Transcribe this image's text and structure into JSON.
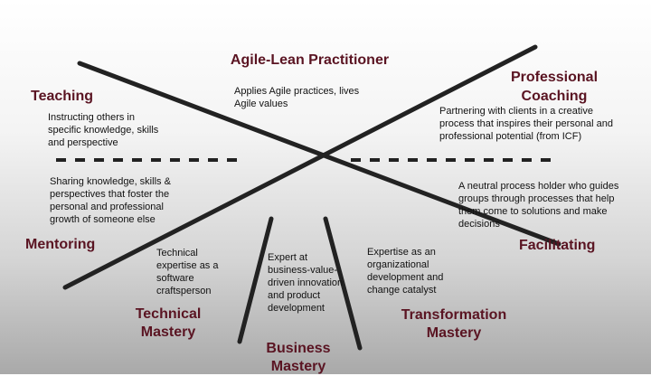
{
  "center": {
    "title": "Agile-Lean Practitioner",
    "desc": "Applies Agile practices, lives Agile values"
  },
  "teaching": {
    "title": "Teaching",
    "desc": "Instructing others in specific knowledge, skills and perspective"
  },
  "coaching": {
    "title": "Professional Coaching",
    "desc": "Partnering with clients in a creative process that inspires their personal and professional potential (from ICF)"
  },
  "mentoring": {
    "title": "Mentoring",
    "desc": "Sharing knowledge, skills & perspectives that foster the personal and professional growth of someone else"
  },
  "facilitating": {
    "title": "Facilitating",
    "desc": "A neutral process holder who guides groups through processes that help them come to solutions and make decisions"
  },
  "technical": {
    "title": "Technical Mastery",
    "desc": "Technical expertise as a software craftsperson"
  },
  "business": {
    "title": "Business Mastery",
    "desc": "Expert at business-value-driven innovation and product development"
  },
  "transformation": {
    "title": "Transformation Mastery",
    "desc": "Expertise as an organizational development and change catalyst"
  }
}
